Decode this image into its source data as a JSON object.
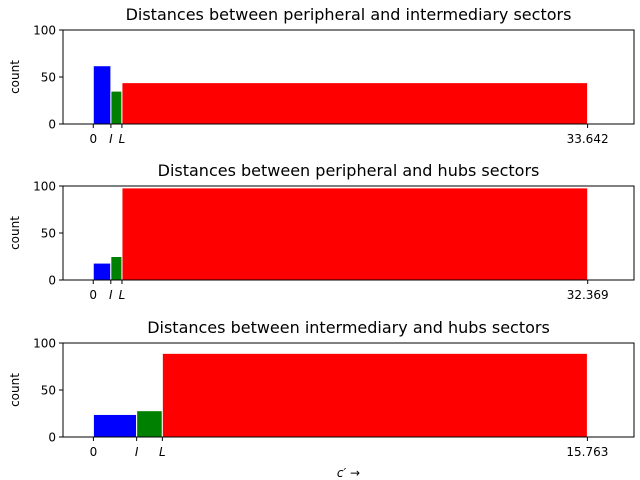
{
  "chart_data": [
    {
      "type": "bar",
      "title": "Distances between peripheral and intermediary sectors",
      "ylabel": "count",
      "xlabel": "",
      "ylim": [
        0,
        100
      ],
      "yticks": [
        "0",
        "50",
        "100"
      ],
      "xlim": [
        -2.06,
        36.8
      ],
      "xticks": [
        {
          "value": 0,
          "label": "0",
          "italic": false
        },
        {
          "value": 1.2,
          "label": "I",
          "italic": true
        },
        {
          "value": 1.95,
          "label": "L",
          "italic": true
        },
        {
          "value": 33.642,
          "label": "33.642",
          "italic": false
        }
      ],
      "bins": [
        {
          "start": 0,
          "end": 1.2,
          "value": 62,
          "color": "#0000ff"
        },
        {
          "start": 1.2,
          "end": 1.95,
          "value": 35,
          "color": "#008000"
        },
        {
          "start": 1.95,
          "end": 33.642,
          "value": 44,
          "color": "#ff0000"
        }
      ]
    },
    {
      "type": "bar",
      "title": "Distances between peripheral and hubs sectors",
      "ylabel": "count",
      "xlabel": "",
      "ylim": [
        0,
        100
      ],
      "yticks": [
        "0",
        "50",
        "100"
      ],
      "xlim": [
        -1.98,
        35.4
      ],
      "xticks": [
        {
          "value": 0,
          "label": "0",
          "italic": false
        },
        {
          "value": 1.15,
          "label": "I",
          "italic": true
        },
        {
          "value": 1.88,
          "label": "L",
          "italic": true
        },
        {
          "value": 32.369,
          "label": "32.369",
          "italic": false
        }
      ],
      "bins": [
        {
          "start": 0,
          "end": 1.15,
          "value": 18,
          "color": "#0000ff"
        },
        {
          "start": 1.15,
          "end": 1.88,
          "value": 25,
          "color": "#008000"
        },
        {
          "start": 1.88,
          "end": 32.369,
          "value": 98,
          "color": "#ff0000"
        }
      ]
    },
    {
      "type": "bar",
      "title": "Distances between intermediary and hubs sectors",
      "ylabel": "count",
      "xlabel": "c′ →",
      "ylim": [
        0,
        100
      ],
      "yticks": [
        "0",
        "50",
        "100"
      ],
      "xlim": [
        -0.97,
        17.25
      ],
      "xticks": [
        {
          "value": 0,
          "label": "0",
          "italic": false
        },
        {
          "value": 1.38,
          "label": "I",
          "italic": true
        },
        {
          "value": 2.2,
          "label": "L",
          "italic": true
        },
        {
          "value": 15.763,
          "label": "15.763",
          "italic": false
        }
      ],
      "bins": [
        {
          "start": 0,
          "end": 1.38,
          "value": 24,
          "color": "#0000ff"
        },
        {
          "start": 1.38,
          "end": 2.2,
          "value": 28,
          "color": "#008000"
        },
        {
          "start": 2.2,
          "end": 15.763,
          "value": 89,
          "color": "#ff0000"
        }
      ]
    }
  ]
}
